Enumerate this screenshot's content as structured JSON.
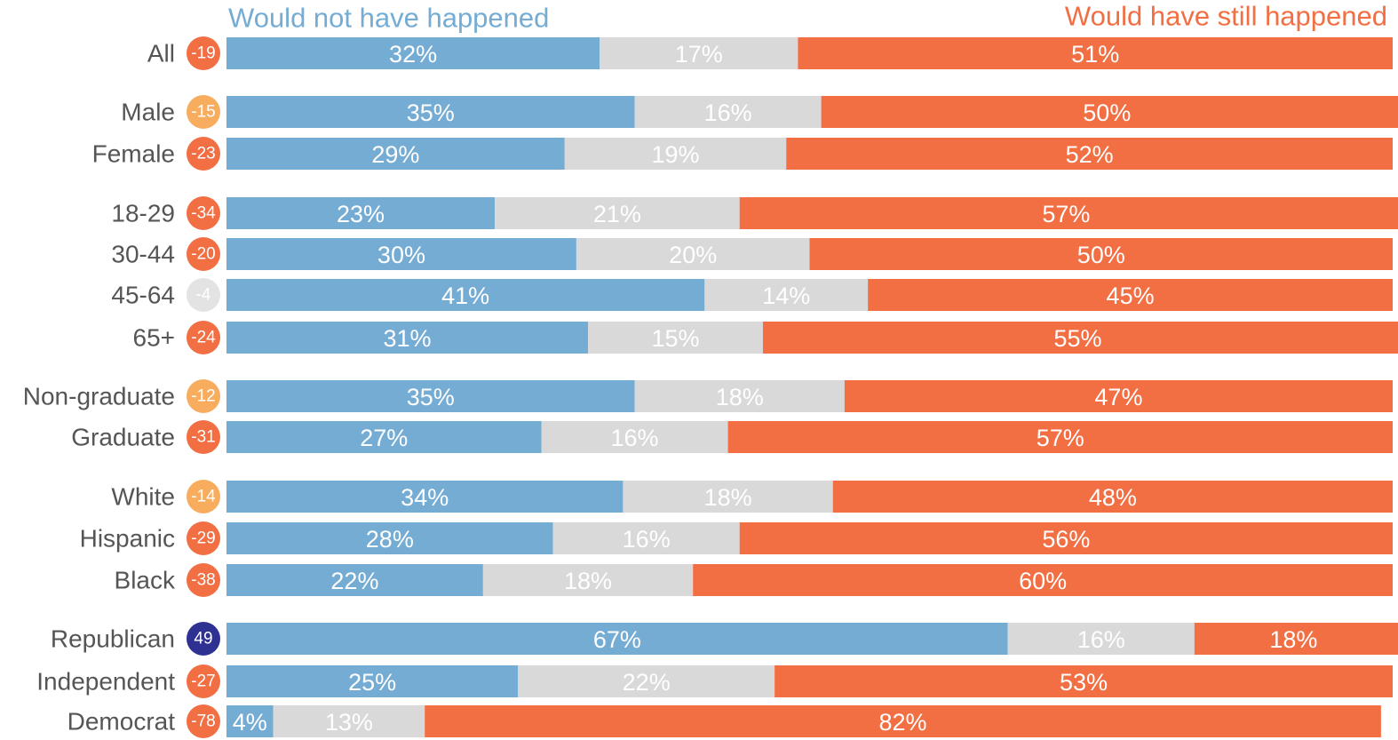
{
  "chart_data": {
    "type": "stacked-bar-horizontal",
    "categories": [
      "All",
      "Male",
      "Female",
      "18-29",
      "30-44",
      "45-64",
      "65+",
      "Non-graduate",
      "Graduate",
      "White",
      "Hispanic",
      "Black",
      "Republican",
      "Independent",
      "Democrat"
    ],
    "xlim": [
      0,
      100
    ],
    "series": [
      {
        "name": "Would not have happened",
        "color": "#75acd3",
        "values": [
          32,
          35,
          29,
          23,
          30,
          41,
          31,
          35,
          27,
          34,
          28,
          22,
          67,
          25,
          4
        ],
        "value_labels": [
          "32%",
          "35%",
          "29%",
          "23%",
          "30%",
          "41%",
          "31%",
          "35%",
          "27%",
          "34%",
          "28%",
          "22%",
          "67%",
          "25%",
          "4%"
        ]
      },
      {
        "color": "#d9d9d9",
        "values": [
          17,
          16,
          19,
          21,
          20,
          14,
          15,
          18,
          16,
          18,
          16,
          18,
          16,
          22,
          13
        ],
        "value_labels": [
          "17%",
          "16%",
          "19%",
          "21%",
          "20%",
          "14%",
          "15%",
          "18%",
          "16%",
          "18%",
          "16%",
          "18%",
          "16%",
          "22%",
          "13%"
        ]
      },
      {
        "name": "Would have still happened",
        "color": "#f26e43",
        "values": [
          51,
          50,
          52,
          57,
          50,
          45,
          55,
          47,
          57,
          48,
          56,
          60,
          18,
          53,
          82
        ],
        "value_labels": [
          "51%",
          "50%",
          "52%",
          "57%",
          "50%",
          "45%",
          "55%",
          "47%",
          "57%",
          "48%",
          "56%",
          "60%",
          "18%",
          "53%",
          "82%"
        ]
      }
    ],
    "net": {
      "values": [
        -19,
        -15,
        -23,
        -34,
        -20,
        -4,
        -24,
        -12,
        -31,
        -14,
        -29,
        -38,
        49,
        -27,
        -78
      ],
      "colors": [
        "#f26e43",
        "#f8ad5e",
        "#f26e43",
        "#f26e43",
        "#f26e43",
        "#e3e3e3",
        "#f26e43",
        "#f8ad5e",
        "#f26e43",
        "#f8ad5e",
        "#f26e43",
        "#f26e43",
        "#2e3192",
        "#f26e43",
        "#f26e43"
      ]
    }
  }
}
